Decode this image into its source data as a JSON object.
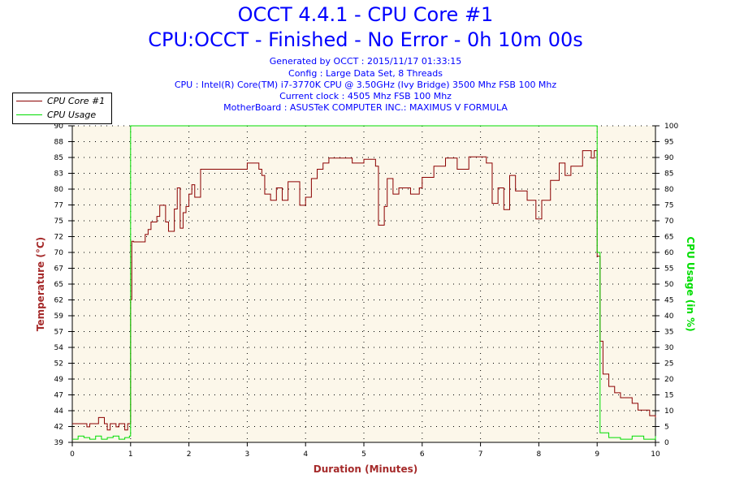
{
  "header": {
    "title": "OCCT 4.4.1 - CPU Core #1",
    "subtitle": "CPU:OCCT - Finished - No Error - 0h 10m 00s",
    "info": [
      "Generated by OCCT : 2015/11/17 01:33:15",
      "Config : Large Data Set, 8 Threads",
      "CPU : Intel(R) Core(TM) i7-3770K CPU @ 3.50GHz (Ivy Bridge) 3500 Mhz FSB 100 Mhz",
      "Current clock : 4505 Mhz FSB 100 Mhz",
      "MotherBoard : ASUSTeK COMPUTER INC.: MAXIMUS V FORMULA"
    ]
  },
  "colors": {
    "temp": "#8b0000",
    "usage": "#00dd00",
    "plot_bg": "#fcf7ea",
    "title": "#0000ff",
    "left_label": "#a52a2a"
  },
  "chart_data": {
    "type": "line",
    "title": "OCCT 4.4.1 - CPU Core #1",
    "xlabel": "Duration (Minutes)",
    "ylabel": "Temperature (°C)",
    "y2label": "CPU Usage (in %)",
    "xlim": [
      0,
      10
    ],
    "ylim": [
      39,
      90
    ],
    "y2lim": [
      0,
      100
    ],
    "xticks": [
      "0",
      "1",
      "2",
      "3",
      "4",
      "5",
      "6",
      "7",
      "8",
      "9",
      "10"
    ],
    "yticks": [
      "39",
      "42",
      "44",
      "47",
      "49",
      "52",
      "54",
      "57",
      "59",
      "62",
      "65",
      "67",
      "70",
      "72",
      "75",
      "77",
      "80",
      "83",
      "85",
      "88",
      "90"
    ],
    "y2ticks": [
      "0",
      "5",
      "10",
      "15",
      "20",
      "25",
      "30",
      "35",
      "40",
      "45",
      "50",
      "55",
      "60",
      "65",
      "70",
      "75",
      "80",
      "85",
      "90",
      "95",
      "100"
    ],
    "legend": [
      "CPU Core #1",
      "CPU Usage"
    ],
    "legend_position": "top-left",
    "grid": true,
    "series": [
      {
        "name": "CPU Core #1",
        "axis": "left",
        "x": [
          0,
          0.25,
          0.3,
          0.45,
          0.55,
          0.6,
          0.65,
          0.75,
          0.8,
          0.9,
          0.95,
          1.0,
          1.02,
          1.05,
          1.25,
          1.3,
          1.35,
          1.45,
          1.5,
          1.6,
          1.65,
          1.75,
          1.8,
          1.85,
          1.9,
          1.95,
          2.0,
          2.05,
          2.1,
          2.2,
          2.3,
          3.0,
          3.2,
          3.25,
          3.3,
          3.4,
          3.5,
          3.6,
          3.7,
          3.9,
          4.0,
          4.1,
          4.2,
          4.3,
          4.4,
          4.8,
          5.0,
          5.2,
          5.25,
          5.35,
          5.4,
          5.5,
          5.6,
          5.8,
          5.95,
          6.0,
          6.2,
          6.4,
          6.6,
          6.8,
          7.1,
          7.2,
          7.3,
          7.4,
          7.5,
          7.6,
          7.8,
          7.95,
          8.05,
          8.2,
          8.35,
          8.45,
          8.55,
          8.75,
          8.9,
          8.95,
          9.0,
          9.05,
          9.1,
          9.2,
          9.3,
          9.4,
          9.6,
          9.7,
          9.9,
          10
        ],
        "values": [
          42,
          41.5,
          42,
          43,
          42,
          41,
          42,
          41.5,
          42,
          41,
          42,
          62,
          71.4,
          71.3,
          72.5,
          73.3,
          74.5,
          75.4,
          77.2,
          74.5,
          73,
          76.6,
          80,
          73.5,
          76,
          77,
          79,
          80.5,
          78.5,
          83,
          83,
          84,
          83,
          82,
          79,
          78,
          80,
          78,
          81,
          77.2,
          78.5,
          81.5,
          83,
          84,
          84.8,
          84,
          84.6,
          83.5,
          74,
          77,
          81.5,
          79,
          80,
          79,
          80,
          81.7,
          83.5,
          84.8,
          83,
          85,
          84,
          77.5,
          80,
          76.5,
          82,
          79.5,
          78,
          75,
          78,
          81.2,
          84,
          82,
          83.5,
          86,
          84.8,
          86,
          69,
          55.3,
          50,
          48,
          47,
          46.2,
          45.3,
          44.2,
          43.3,
          43
        ]
      },
      {
        "name": "CPU Usage",
        "axis": "right",
        "x": [
          0,
          0.1,
          0.2,
          0.3,
          0.4,
          0.5,
          0.6,
          0.7,
          0.8,
          0.9,
          0.98,
          1.0,
          8.97,
          9.0,
          9.05,
          9.2,
          9.4,
          9.6,
          9.8,
          10
        ],
        "values": [
          1,
          2,
          1.5,
          1,
          2,
          1,
          1.5,
          2,
          1,
          1.5,
          2,
          100,
          100,
          60,
          3,
          1.5,
          1,
          2,
          1,
          2
        ]
      }
    ]
  }
}
